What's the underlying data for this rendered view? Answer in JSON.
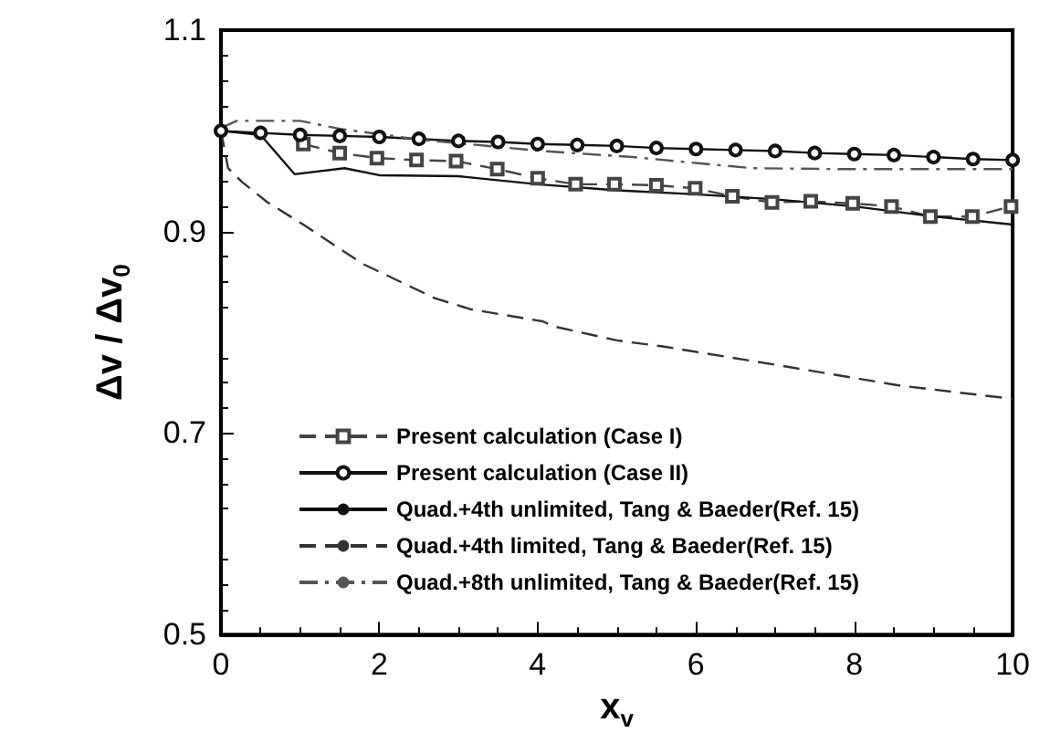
{
  "chart_data": {
    "type": "line",
    "xlabel": "x$_{v}$",
    "ylabel": "Δv / Δv$_{0}$",
    "xlim": [
      0,
      10
    ],
    "xticks": [
      0,
      2,
      4,
      6,
      8,
      10
    ],
    "ylim": [
      0.5,
      1.1
    ],
    "yticks": [
      0.5,
      0.7,
      0.9,
      1.1
    ],
    "grid": false,
    "legend": "bottom left",
    "series": [
      {
        "name": "Present calculation (Case I)",
        "color": "#444444",
        "line_style": "dashed",
        "marker": "square",
        "x": [
          1.04,
          1.5,
          1.97,
          2.47,
          2.97,
          3.49,
          4.0,
          4.48,
          4.97,
          5.5,
          5.99,
          6.46,
          6.96,
          7.45,
          7.98,
          8.47,
          8.96,
          9.49,
          9.98
        ],
        "values": [
          0.987,
          0.978,
          0.973,
          0.971,
          0.97,
          0.962,
          0.953,
          0.947,
          0.947,
          0.946,
          0.943,
          0.935,
          0.929,
          0.93,
          0.928,
          0.925,
          0.915,
          0.915,
          0.925
        ]
      },
      {
        "name": "Present calculation (Case II)",
        "color": "#111111",
        "line_style": "solid",
        "marker": "circle",
        "x": [
          0,
          0.5,
          1,
          1.5,
          2,
          2.5,
          3,
          3.5,
          4,
          4.5,
          5,
          5.5,
          6,
          6.5,
          7,
          7.5,
          8,
          8.5,
          9,
          9.5,
          10
        ],
        "values": [
          1.0,
          0.998,
          0.996,
          0.995,
          0.994,
          0.992,
          0.99,
          0.989,
          0.987,
          0.986,
          0.985,
          0.983,
          0.982,
          0.981,
          0.98,
          0.978,
          0.977,
          0.976,
          0.974,
          0.972,
          0.971
        ]
      },
      {
        "name": "Quad.+4th unlimited, Tang & Baeder(Ref. 15)",
        "color": "#111111",
        "line_style": "solid",
        "marker": "none",
        "x": [
          0,
          0.5,
          0.93,
          1.56,
          2,
          3,
          4,
          5,
          6,
          7,
          8,
          9,
          10
        ],
        "values": [
          1.0,
          0.996,
          0.957,
          0.963,
          0.956,
          0.955,
          0.947,
          0.941,
          0.937,
          0.932,
          0.925,
          0.915,
          0.907
        ]
      },
      {
        "name": "Quad.+4th limited, Tang & Baeder(Ref. 15)",
        "color": "#333333",
        "line_style": "dashed",
        "marker": "none",
        "x": [
          0,
          0.09,
          0.27,
          0.59,
          1.04,
          1.79,
          2.7,
          3.15,
          4.06,
          4.2,
          5.0,
          5.58,
          7.07,
          8.59,
          10
        ],
        "values": [
          1.0,
          0.963,
          0.949,
          0.929,
          0.907,
          0.868,
          0.834,
          0.823,
          0.811,
          0.806,
          0.792,
          0.786,
          0.767,
          0.747,
          0.734
        ]
      },
      {
        "name": "Quad.+8th unlimited, Tang & Baeder(Ref. 15)",
        "color": "#555555",
        "line_style": "dashdot",
        "marker": "none",
        "x": [
          0,
          0.2,
          1.0,
          1.5,
          2.55,
          4.06,
          5.2,
          6.7,
          7.86,
          10
        ],
        "values": [
          1.003,
          1.01,
          1.01,
          1.002,
          0.991,
          0.98,
          0.974,
          0.963,
          0.962,
          0.962
        ]
      }
    ]
  }
}
